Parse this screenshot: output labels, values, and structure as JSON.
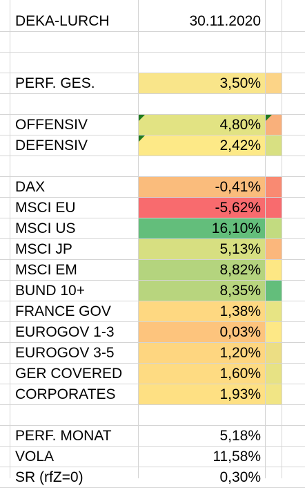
{
  "header": {
    "name": "DEKA-LURCH",
    "date": "30.11.2020"
  },
  "rows": [
    {
      "label": "",
      "value": ""
    },
    {
      "label": "",
      "value": ""
    },
    {
      "label": "PERF. GES.",
      "value": "3,50%",
      "bg": "#f9e58a",
      "side": "#fcd487"
    },
    {
      "label": "",
      "value": ""
    },
    {
      "label": "OFFENSIV",
      "value": "4,80%",
      "bg": "#e2e383",
      "side": "#f9b07b",
      "mark": true,
      "sideMark": true
    },
    {
      "label": "DEFENSIV",
      "value": "2,42%",
      "bg": "#fde987",
      "side": "#d8e082",
      "mark": true
    },
    {
      "label": "",
      "value": ""
    },
    {
      "label": "DAX",
      "value": "-0,41%",
      "bg": "#fabc7c",
      "side": "#f98a72"
    },
    {
      "label": "MSCI EU",
      "value": "-5,62%",
      "bg": "#f86b6e",
      "side": "#f86b6e"
    },
    {
      "label": "MSCI US",
      "value": "16,10%",
      "bg": "#63be7b",
      "side": "#c2db80"
    },
    {
      "label": "MSCI JP",
      "value": "5,13%",
      "bg": "#d7df81",
      "side": "#fbb77c"
    },
    {
      "label": "MSCI EM",
      "value": "8,82%",
      "bg": "#b4d47e",
      "side": "#fde784"
    },
    {
      "label": "BUND 10+",
      "value": "8,35%",
      "bg": "#b8d57e",
      "side": "#63be7b"
    },
    {
      "label": "FRANCE GOV",
      "value": "1,38%",
      "bg": "#fed881",
      "side": "#e7e484"
    },
    {
      "label": "EUROGOV 1-3",
      "value": "0,03%",
      "bg": "#fdc47d",
      "side": "#fde886"
    },
    {
      "label": "EUROGOV 3-5",
      "value": "1,20%",
      "bg": "#fed680",
      "side": "#ecde84"
    },
    {
      "label": "GER COVERED",
      "value": "1,60%",
      "bg": "#fedb82",
      "side": "#e7e284"
    },
    {
      "label": "CORPORATES",
      "value": "1,93%",
      "bg": "#fee083",
      "side": "#f1e585"
    },
    {
      "label": "",
      "value": ""
    },
    {
      "label": "PERF. MONAT",
      "value": "5,18%"
    },
    {
      "label": "VOLA",
      "value": "11,58%"
    },
    {
      "label": "SR (rfZ=0)",
      "value": "0,30%"
    }
  ]
}
